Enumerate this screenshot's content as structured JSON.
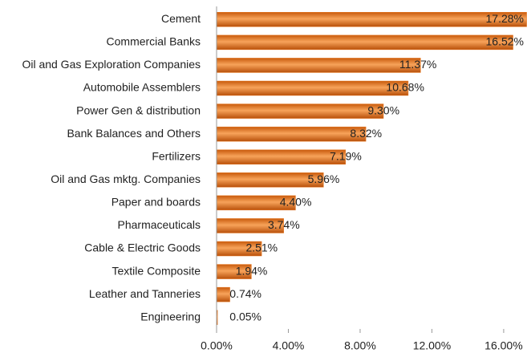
{
  "chart_data": {
    "type": "bar",
    "orientation": "horizontal",
    "categories": [
      "Cement",
      "Commercial Banks",
      "Oil and Gas Exploration Companies",
      "Automobile Assemblers",
      "Power Gen & distribution",
      "Bank Balances and Others",
      "Fertilizers",
      "Oil and Gas mktg. Companies",
      "Paper and boards",
      "Pharmaceuticals",
      "Cable & Electric Goods",
      "Textile Composite",
      "Leather and Tanneries",
      "Engineering"
    ],
    "values": [
      17.28,
      16.52,
      11.37,
      10.68,
      9.3,
      8.32,
      7.19,
      5.96,
      4.4,
      3.74,
      2.51,
      1.94,
      0.74,
      0.05
    ],
    "value_labels": [
      "17.28%",
      "16.52%",
      "11.37%",
      "10.68%",
      "9.30%",
      "8.32%",
      "7.19%",
      "5.96%",
      "4.40%",
      "3.74%",
      "2.51%",
      "1.94%",
      "0.74%",
      "0.05%"
    ],
    "color": "#e8771e",
    "xlim": [
      0,
      17.3
    ],
    "xticks": [
      {
        "value": 0,
        "label": "0.00%"
      },
      {
        "value": 4,
        "label": "4.00%"
      },
      {
        "value": 8,
        "label": "8.00%"
      },
      {
        "value": 12,
        "label": "12.00%"
      },
      {
        "value": 16,
        "label": "16.00%"
      }
    ]
  }
}
